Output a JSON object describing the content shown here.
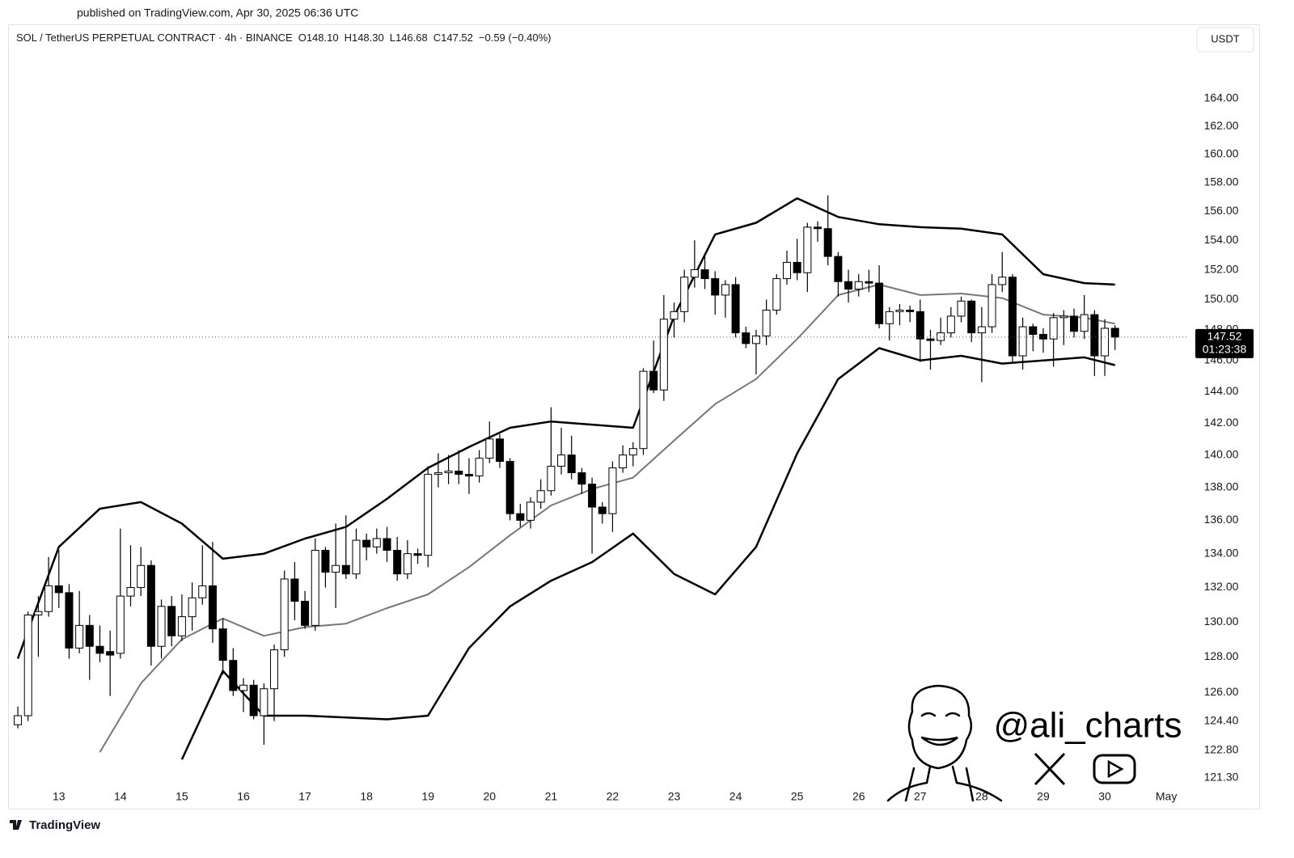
{
  "published": "published on TradingView.com, Apr 30, 2025 06:36 UTC",
  "currency": "USDT",
  "watermark": "@ali_charts",
  "brand": "TradingView",
  "chart_data": {
    "type": "candlestick",
    "title": "SOL / TetherUS PERPETUAL CONTRACT · 4h · BINANCE",
    "header_values": [
      "O148.10",
      "H148.30",
      "L146.68",
      "C147.52",
      "−0.59 (−0.40%)"
    ],
    "log_scale": true,
    "grid": false,
    "up_color": "#ffffff",
    "down_color": "#000000",
    "ylim": [
      121.04,
      169.5
    ],
    "yticks": [
      {
        "value": 164,
        "label": "164.00"
      },
      {
        "value": 162,
        "label": "162.00"
      },
      {
        "value": 160,
        "label": "160.00"
      },
      {
        "value": 158,
        "label": "158.00"
      },
      {
        "value": 156,
        "label": "156.00"
      },
      {
        "value": 154,
        "label": "154.00"
      },
      {
        "value": 152,
        "label": "152.00"
      },
      {
        "value": 150,
        "label": "150.00"
      },
      {
        "value": 148,
        "label": "148.00"
      },
      {
        "value": 146,
        "label": "146.00"
      },
      {
        "value": 144,
        "label": "144.00"
      },
      {
        "value": 142,
        "label": "142.00"
      },
      {
        "value": 140,
        "label": "140.00"
      },
      {
        "value": 138,
        "label": "138.00"
      },
      {
        "value": 136,
        "label": "136.00"
      },
      {
        "value": 134,
        "label": "134.00"
      },
      {
        "value": 132,
        "label": "132.00"
      },
      {
        "value": 130,
        "label": "130.00"
      },
      {
        "value": 128,
        "label": "128.00"
      },
      {
        "value": 126,
        "label": "126.00"
      },
      {
        "value": 124.4,
        "label": "124.40"
      },
      {
        "value": 122.8,
        "label": "122.80"
      },
      {
        "value": 121.3,
        "label": "121.30"
      }
    ],
    "xlim": [
      -0.95,
      114.2
    ],
    "xticks": [
      {
        "value": 4,
        "label": "13"
      },
      {
        "value": 10,
        "label": "14"
      },
      {
        "value": 16,
        "label": "15"
      },
      {
        "value": 22,
        "label": "16"
      },
      {
        "value": 28,
        "label": "17"
      },
      {
        "value": 34,
        "label": "18"
      },
      {
        "value": 40,
        "label": "19"
      },
      {
        "value": 46,
        "label": "20"
      },
      {
        "value": 52,
        "label": "21"
      },
      {
        "value": 58,
        "label": "22"
      },
      {
        "value": 64,
        "label": "23"
      },
      {
        "value": 70,
        "label": "24"
      },
      {
        "value": 76,
        "label": "25"
      },
      {
        "value": 82,
        "label": "26"
      },
      {
        "value": 88,
        "label": "27"
      },
      {
        "value": 94,
        "label": "28"
      },
      {
        "value": 100,
        "label": "29"
      },
      {
        "value": 106,
        "label": "30"
      },
      {
        "value": 112,
        "label": "May"
      }
    ],
    "candles": {
      "x": [
        0,
        1,
        2,
        3,
        4,
        5,
        6,
        7,
        8,
        9,
        10,
        11,
        12,
        13,
        14,
        15,
        16,
        17,
        18,
        19,
        20,
        21,
        22,
        23,
        24,
        25,
        26,
        27,
        28,
        29,
        30,
        31,
        32,
        33,
        34,
        35,
        36,
        37,
        38,
        39,
        40,
        41,
        42,
        43,
        44,
        45,
        46,
        47,
        48,
        49,
        50,
        51,
        52,
        53,
        54,
        55,
        56,
        57,
        58,
        59,
        60,
        61,
        62,
        63,
        64,
        65,
        66,
        67,
        68,
        69,
        70,
        71,
        72,
        73,
        74,
        75,
        76,
        77,
        78,
        79,
        80,
        81,
        82,
        83,
        84,
        85,
        86,
        87,
        88,
        89,
        90,
        91,
        92,
        93,
        94,
        95,
        96,
        97,
        98,
        99,
        100,
        101,
        102,
        103,
        104,
        105,
        106,
        107
      ],
      "open": [
        124.2,
        124.7,
        130.4,
        130.6,
        132.1,
        131.7,
        128.5,
        129.8,
        128.6,
        128.3,
        128.2,
        131.5,
        132.0,
        133.3,
        128.6,
        130.9,
        129.2,
        130.3,
        131.4,
        132.1,
        129.6,
        127.8,
        126.1,
        126.4,
        124.7,
        126.2,
        128.4,
        132.5,
        131.2,
        129.8,
        134.2,
        132.9,
        133.3,
        132.8,
        134.8,
        134.4,
        134.9,
        134.2,
        132.8,
        134.0,
        133.9,
        138.8,
        138.9,
        139.0,
        138.8,
        138.7,
        139.8,
        141.0,
        139.6,
        136.4,
        136.0,
        137.1,
        137.8,
        139.3,
        140.0,
        138.9,
        138.2,
        136.8,
        136.4,
        139.2,
        140.0,
        140.4,
        145.3,
        144.1,
        148.7,
        149.2,
        151.5,
        152.0,
        151.4,
        150.3,
        151.0,
        147.8,
        147.1,
        147.6,
        149.3,
        151.4,
        152.5,
        151.8,
        154.9,
        154.8,
        152.9,
        151.2,
        150.7,
        151.2,
        151.1,
        148.4,
        149.2,
        149.3,
        149.2,
        147.4,
        147.3,
        147.8,
        148.9,
        149.9,
        147.8,
        148.2,
        151.0,
        151.5,
        146.3,
        148.2,
        147.7,
        147.4,
        148.8,
        148.9,
        147.9,
        149.0,
        146.3,
        148.1
      ],
      "high": [
        125.2,
        130.6,
        131.5,
        133.8,
        134.2,
        132.2,
        131.8,
        130.4,
        129.8,
        129.5,
        135.5,
        134.5,
        134.4,
        133.6,
        131.3,
        131.5,
        131.6,
        132.3,
        134.5,
        134.7,
        130.2,
        128.5,
        126.8,
        126.7,
        126.5,
        128.7,
        133.0,
        133.5,
        131.8,
        134.9,
        134.4,
        135.8,
        136.3,
        135.5,
        135.2,
        135.5,
        135.6,
        135.0,
        134.8,
        134.3,
        139.3,
        140.1,
        140.0,
        140.3,
        139.8,
        140.3,
        142.1,
        141.3,
        139.8,
        137.0,
        137.4,
        138.5,
        143.0,
        141.7,
        141.2,
        139.2,
        138.6,
        137.1,
        139.6,
        140.6,
        140.8,
        145.5,
        147.3,
        150.3,
        149.8,
        152.0,
        154.0,
        153.0,
        151.9,
        151.3,
        151.5,
        148.2,
        148.0,
        150.0,
        151.7,
        153.3,
        154.1,
        155.2,
        155.3,
        157.1,
        153.2,
        152.0,
        151.7,
        152.0,
        152.3,
        149.5,
        149.7,
        149.6,
        150.0,
        148.0,
        148.8,
        149.5,
        150.2,
        150.0,
        149.5,
        151.7,
        153.2,
        151.7,
        148.8,
        148.4,
        148.1,
        149.1,
        149.3,
        149.4,
        150.3,
        149.3,
        148.7,
        148.3
      ],
      "low": [
        124.0,
        124.4,
        128.0,
        130.3,
        130.8,
        127.9,
        128.2,
        126.7,
        127.7,
        125.8,
        127.9,
        130.9,
        131.5,
        127.5,
        127.9,
        128.6,
        128.9,
        129.5,
        131.0,
        128.8,
        127.0,
        125.8,
        124.9,
        124.5,
        123.1,
        124.4,
        128.0,
        130.1,
        129.6,
        129.5,
        132.0,
        130.8,
        132.5,
        132.5,
        133.6,
        134.0,
        133.5,
        132.4,
        132.5,
        133.4,
        133.2,
        138.0,
        138.2,
        138.2,
        137.6,
        138.3,
        139.5,
        139.2,
        136.0,
        135.6,
        135.5,
        136.7,
        137.5,
        138.8,
        138.5,
        137.6,
        134.0,
        135.8,
        135.3,
        138.9,
        139.3,
        140.0,
        143.9,
        143.4,
        147.5,
        148.5,
        150.8,
        150.7,
        149.0,
        148.8,
        147.5,
        146.8,
        145.1,
        147.0,
        149.0,
        151.0,
        151.3,
        150.5,
        153.9,
        152.3,
        150.2,
        149.8,
        150.2,
        150.5,
        148.1,
        147.3,
        148.3,
        148.5,
        145.9,
        145.4,
        147.0,
        147.5,
        148.5,
        147.2,
        144.6,
        147.8,
        150.5,
        145.9,
        145.4,
        146.6,
        146.5,
        145.6,
        147.0,
        147.5,
        147.4,
        145.0,
        145.0,
        146.68
      ],
      "close": [
        124.7,
        130.4,
        130.6,
        132.1,
        131.7,
        128.5,
        129.8,
        128.6,
        128.2,
        128.1,
        131.5,
        132.0,
        133.3,
        128.6,
        130.9,
        129.2,
        130.3,
        131.4,
        132.1,
        129.6,
        127.8,
        126.1,
        126.4,
        124.7,
        126.2,
        128.4,
        132.5,
        131.2,
        129.8,
        134.2,
        132.9,
        133.3,
        132.8,
        134.8,
        134.4,
        134.9,
        134.2,
        132.8,
        134.0,
        133.9,
        138.8,
        138.9,
        139.0,
        138.8,
        138.7,
        139.8,
        141.0,
        139.6,
        136.4,
        136.0,
        137.1,
        137.8,
        139.3,
        140.0,
        138.9,
        138.2,
        136.8,
        136.4,
        139.2,
        140.0,
        140.4,
        145.3,
        144.1,
        148.7,
        149.2,
        151.5,
        152.0,
        151.4,
        150.3,
        151.0,
        147.8,
        147.1,
        147.6,
        149.3,
        151.4,
        152.5,
        151.8,
        154.9,
        154.8,
        152.9,
        151.2,
        150.7,
        151.2,
        151.1,
        148.4,
        149.2,
        149.3,
        149.2,
        147.4,
        147.3,
        147.8,
        148.9,
        149.9,
        147.8,
        148.2,
        151.0,
        151.5,
        146.3,
        148.2,
        147.7,
        147.4,
        148.8,
        148.9,
        147.9,
        149.0,
        146.3,
        148.1,
        147.52
      ]
    },
    "series": [
      {
        "color": "#000000",
        "x": [
          0,
          4,
          8,
          12,
          16,
          20,
          24,
          28,
          32,
          36,
          40,
          44,
          48,
          52,
          56,
          60,
          64,
          68,
          72,
          76,
          80,
          84,
          88,
          92,
          96,
          100,
          104,
          107
        ],
        "values": [
          127.9,
          134.4,
          136.7,
          137.1,
          135.8,
          133.7,
          134.0,
          134.9,
          135.6,
          137.3,
          139.2,
          140.5,
          141.7,
          142.1,
          141.9,
          141.7,
          148.9,
          154.4,
          155.2,
          156.9,
          155.6,
          155.1,
          154.9,
          154.8,
          154.4,
          151.7,
          151.1,
          151.0
        ]
      },
      {
        "color": "#777777",
        "x": [
          0,
          4,
          8,
          12,
          16,
          20,
          24,
          28,
          32,
          36,
          40,
          44,
          48,
          52,
          56,
          60,
          64,
          68,
          72,
          76,
          80,
          84,
          88,
          92,
          96,
          100,
          104,
          107
        ],
        "values": [
          null,
          null,
          122.7,
          126.5,
          129.0,
          130.2,
          129.2,
          129.7,
          129.9,
          130.8,
          131.6,
          133.2,
          135.1,
          136.9,
          137.9,
          138.6,
          140.9,
          143.2,
          144.8,
          147.4,
          150.3,
          151.0,
          150.3,
          150.4,
          150.1,
          149.0,
          148.8,
          148.4
        ]
      },
      {
        "color": "#000000",
        "x": [
          0,
          4,
          8,
          12,
          16,
          20,
          24,
          28,
          32,
          36,
          40,
          44,
          48,
          52,
          56,
          60,
          64,
          68,
          72,
          76,
          80,
          84,
          88,
          92,
          96,
          100,
          104,
          107
        ],
        "values": [
          null,
          null,
          null,
          null,
          122.3,
          127.2,
          124.7,
          124.7,
          124.6,
          124.5,
          124.7,
          128.5,
          130.9,
          132.4,
          133.5,
          135.2,
          132.8,
          131.6,
          134.4,
          140.1,
          144.8,
          146.8,
          146.0,
          146.3,
          145.8,
          146.0,
          146.2,
          145.7
        ]
      }
    ],
    "last_price": {
      "value": 147.52,
      "label": "147.52"
    },
    "countdown": "01:23:38"
  }
}
